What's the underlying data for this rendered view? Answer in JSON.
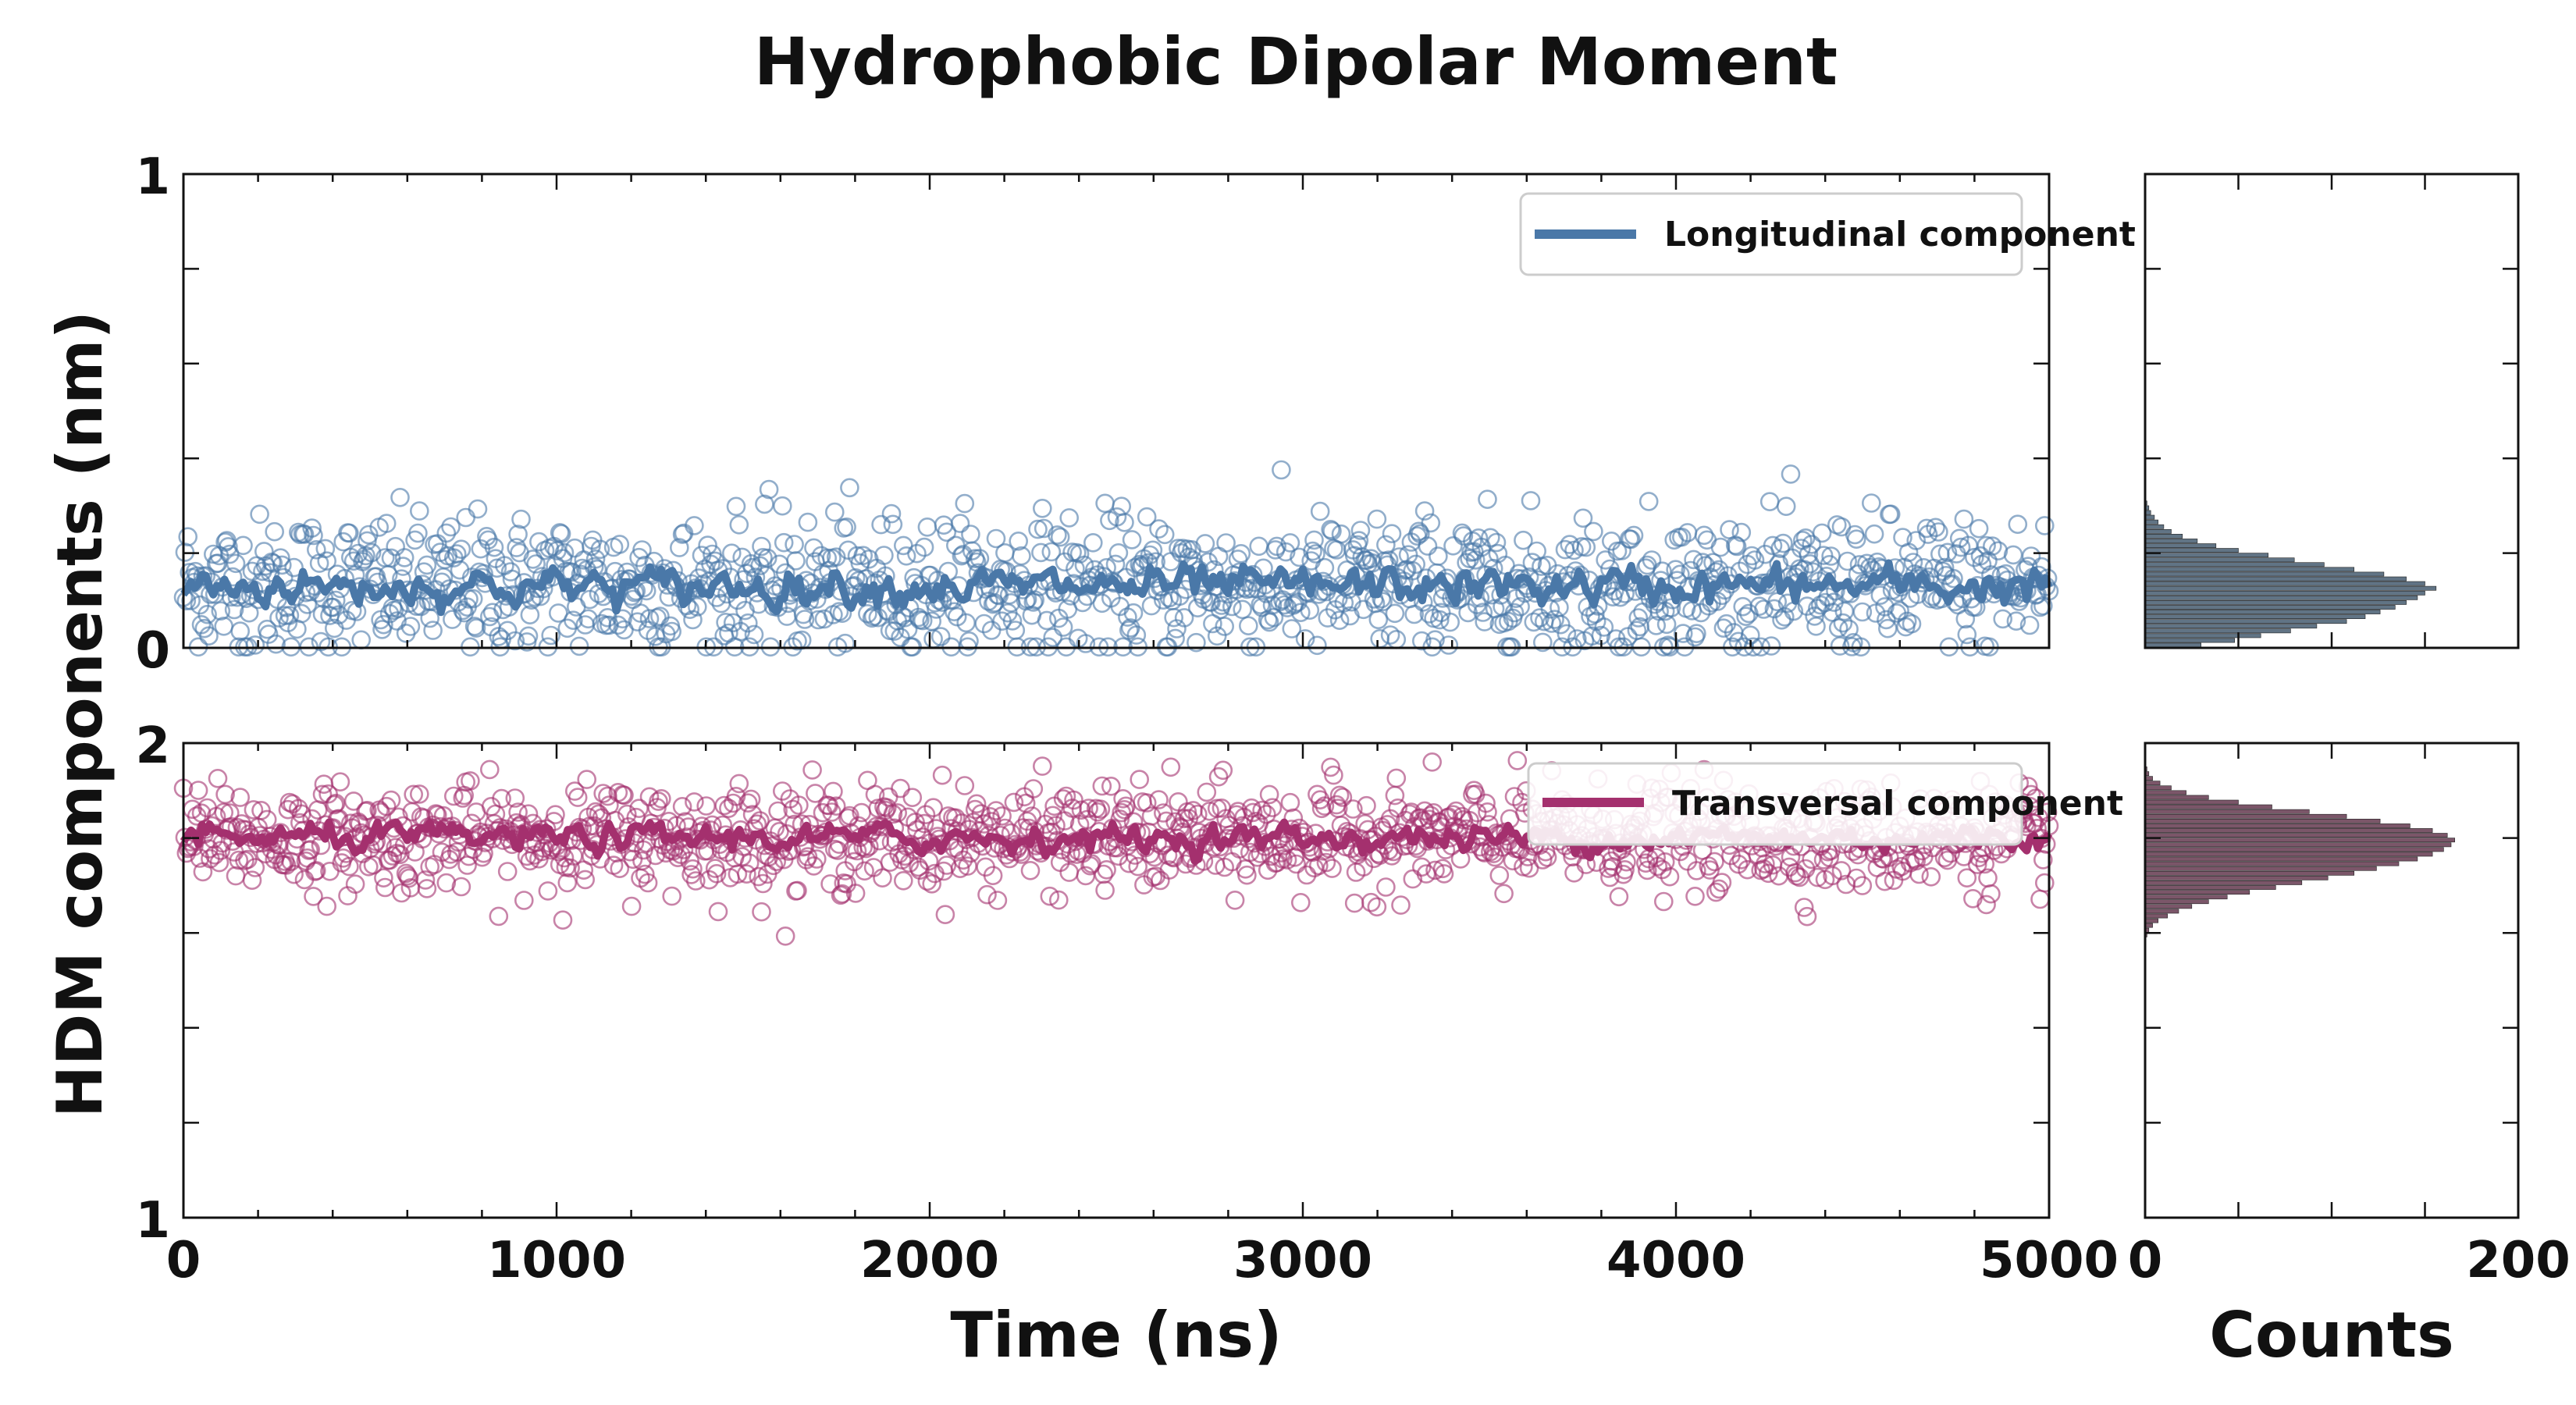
{
  "chart_data": {
    "type": "scatter",
    "title": "Hydrophobic Dipolar Moment",
    "ylabel": "HDM components (nm)",
    "colors": {
      "longitudinal": "#4a78a8",
      "transversal": "#a4306e",
      "hist_longitudinal": "#3a5166",
      "hist_transversal": "#5a2c44"
    },
    "panels": [
      {
        "id": "longitudinal",
        "series_name": "Longitudinal component",
        "xlabel": "",
        "xlim": [
          0,
          5000
        ],
        "ylim": [
          0,
          1
        ],
        "yticklabels": [
          "0",
          "1"
        ],
        "scatter_center": 0.13,
        "scatter_spread": 0.075,
        "moving_average": 0.13,
        "n_points": 1250,
        "legend_loc": "upper right"
      },
      {
        "id": "transversal",
        "series_name": "Transversal component",
        "xlabel": "Time (ns)",
        "xlim": [
          0,
          5000
        ],
        "ylim": [
          1,
          2
        ],
        "yticklabels": [
          "1",
          "2"
        ],
        "xticklabels": [
          "0",
          "1000",
          "2000",
          "3000",
          "4000",
          "5000"
        ],
        "scatter_center": 1.8,
        "scatter_spread": 0.055,
        "moving_average": 1.8,
        "n_points": 1250,
        "legend_loc": "upper right"
      }
    ],
    "histograms": [
      {
        "id": "longitudinal",
        "orientation": "horizontal",
        "ylim": [
          0,
          1
        ],
        "bins": [
          [
            0.005,
            30
          ],
          [
            0.015,
            48
          ],
          [
            0.025,
            62
          ],
          [
            0.035,
            78
          ],
          [
            0.045,
            92
          ],
          [
            0.055,
            108
          ],
          [
            0.065,
            118
          ],
          [
            0.075,
            126
          ],
          [
            0.085,
            134
          ],
          [
            0.095,
            140
          ],
          [
            0.105,
            146
          ],
          [
            0.115,
            150
          ],
          [
            0.125,
            156
          ],
          [
            0.135,
            150
          ],
          [
            0.145,
            140
          ],
          [
            0.155,
            128
          ],
          [
            0.165,
            112
          ],
          [
            0.175,
            96
          ],
          [
            0.185,
            80
          ],
          [
            0.195,
            66
          ],
          [
            0.205,
            50
          ],
          [
            0.215,
            38
          ],
          [
            0.225,
            28
          ],
          [
            0.235,
            20
          ],
          [
            0.245,
            14
          ],
          [
            0.255,
            10
          ],
          [
            0.265,
            7
          ],
          [
            0.275,
            5
          ],
          [
            0.285,
            3
          ],
          [
            0.295,
            2
          ],
          [
            0.305,
            1
          ]
        ]
      },
      {
        "id": "transversal",
        "orientation": "horizontal",
        "ylim": [
          1,
          2
        ],
        "bins": [
          [
            1.595,
            1
          ],
          [
            1.605,
            2
          ],
          [
            1.615,
            4
          ],
          [
            1.625,
            7
          ],
          [
            1.635,
            12
          ],
          [
            1.645,
            18
          ],
          [
            1.655,
            25
          ],
          [
            1.665,
            34
          ],
          [
            1.675,
            44
          ],
          [
            1.685,
            56
          ],
          [
            1.695,
            70
          ],
          [
            1.705,
            84
          ],
          [
            1.715,
            98
          ],
          [
            1.725,
            112
          ],
          [
            1.735,
            124
          ],
          [
            1.745,
            136
          ],
          [
            1.755,
            146
          ],
          [
            1.765,
            154
          ],
          [
            1.775,
            160
          ],
          [
            1.785,
            164
          ],
          [
            1.795,
            166
          ],
          [
            1.805,
            162
          ],
          [
            1.815,
            154
          ],
          [
            1.825,
            142
          ],
          [
            1.835,
            126
          ],
          [
            1.845,
            108
          ],
          [
            1.855,
            88
          ],
          [
            1.865,
            68
          ],
          [
            1.875,
            50
          ],
          [
            1.885,
            34
          ],
          [
            1.895,
            22
          ],
          [
            1.905,
            14
          ],
          [
            1.915,
            8
          ],
          [
            1.925,
            4
          ],
          [
            1.935,
            2
          ],
          [
            1.945,
            1
          ]
        ]
      }
    ],
    "hist_xlim": [
      0,
      200
    ],
    "hist_xticklabels": [
      "0",
      "200"
    ],
    "hist_xlabel": "Counts"
  }
}
